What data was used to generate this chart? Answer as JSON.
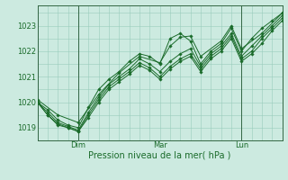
{
  "background_color": "#cceae0",
  "grid_color": "#99ccbb",
  "line_color": "#1a6b2a",
  "marker_color": "#1a6b2a",
  "xlabel": "Pression niveau de la mer( hPa )",
  "ylim": [
    1018.5,
    1023.8
  ],
  "yticks": [
    1019,
    1020,
    1021,
    1022,
    1023
  ],
  "xlim": [
    0,
    72
  ],
  "xtick_positions": [
    12,
    36,
    60
  ],
  "xtick_labels": [
    "Dim",
    "Mar",
    "Lun"
  ],
  "vlines": [
    12,
    60
  ],
  "series": [
    [
      0,
      1020.0,
      3,
      1019.7,
      6,
      1019.3,
      9,
      1019.1,
      12,
      1019.0,
      15,
      1019.8,
      18,
      1020.5,
      21,
      1020.9,
      24,
      1021.2,
      27,
      1021.6,
      30,
      1021.9,
      33,
      1021.8,
      36,
      1021.5,
      39,
      1022.5,
      42,
      1022.7,
      45,
      1022.4,
      48,
      1021.5,
      51,
      1022.0,
      54,
      1022.3,
      57,
      1022.9,
      60,
      1022.0,
      63,
      1022.5,
      66,
      1022.9,
      69,
      1023.2,
      72,
      1023.5
    ],
    [
      0,
      1020.0,
      3,
      1019.6,
      6,
      1019.2,
      9,
      1019.05,
      12,
      1018.9,
      15,
      1019.6,
      18,
      1020.2,
      21,
      1020.7,
      24,
      1021.0,
      27,
      1021.3,
      30,
      1021.7,
      33,
      1021.5,
      36,
      1021.2,
      39,
      1021.6,
      42,
      1021.9,
      45,
      1022.1,
      48,
      1021.4,
      51,
      1021.9,
      54,
      1022.2,
      57,
      1022.7,
      60,
      1021.8,
      63,
      1022.2,
      66,
      1022.6,
      69,
      1023.0,
      72,
      1023.4
    ],
    [
      0,
      1020.0,
      3,
      1019.5,
      6,
      1019.15,
      9,
      1019.0,
      12,
      1018.85,
      15,
      1019.5,
      18,
      1020.1,
      21,
      1020.6,
      24,
      1020.9,
      27,
      1021.2,
      30,
      1021.55,
      33,
      1021.35,
      36,
      1021.0,
      39,
      1021.4,
      42,
      1021.7,
      45,
      1021.9,
      48,
      1021.3,
      51,
      1021.8,
      54,
      1022.1,
      57,
      1022.6,
      60,
      1021.7,
      63,
      1022.0,
      66,
      1022.5,
      69,
      1022.9,
      72,
      1023.3
    ],
    [
      0,
      1020.0,
      3,
      1019.5,
      6,
      1019.1,
      9,
      1019.0,
      12,
      1018.85,
      15,
      1019.4,
      18,
      1020.0,
      21,
      1020.5,
      24,
      1020.8,
      27,
      1021.1,
      30,
      1021.45,
      33,
      1021.25,
      36,
      1020.9,
      39,
      1021.3,
      42,
      1021.6,
      45,
      1021.8,
      48,
      1021.2,
      51,
      1021.7,
      54,
      1022.0,
      57,
      1022.5,
      60,
      1021.6,
      63,
      1021.9,
      66,
      1022.3,
      69,
      1022.8,
      72,
      1023.2
    ],
    [
      0,
      1020.1,
      6,
      1019.5,
      12,
      1019.2,
      18,
      1020.3,
      24,
      1021.15,
      30,
      1021.8,
      36,
      1021.55,
      39,
      1022.2,
      42,
      1022.55,
      45,
      1022.6,
      48,
      1021.8,
      54,
      1022.4,
      57,
      1023.0,
      60,
      1022.1,
      66,
      1022.7,
      72,
      1023.5
    ]
  ]
}
